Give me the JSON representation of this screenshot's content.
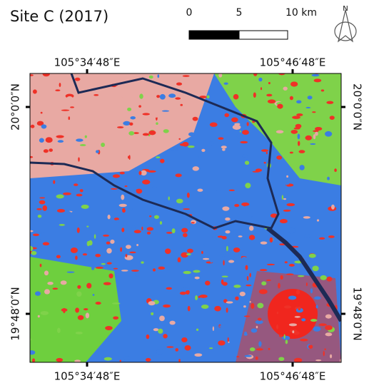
{
  "title": "Site C (2017)",
  "scale_bar": {
    "labels": [
      "0",
      "5",
      "10 km"
    ]
  },
  "north_arrow": {
    "label": "N"
  },
  "coordinates": {
    "top": [
      "105°34′48″E",
      "105°46′48″E"
    ],
    "bottom": [
      "105°34′48″E",
      "105°46′48″E"
    ],
    "left": [
      "20°0′0″N",
      "19°48′0″N"
    ],
    "right": [
      "20°0′0″N",
      "19°48′0″N"
    ]
  }
}
